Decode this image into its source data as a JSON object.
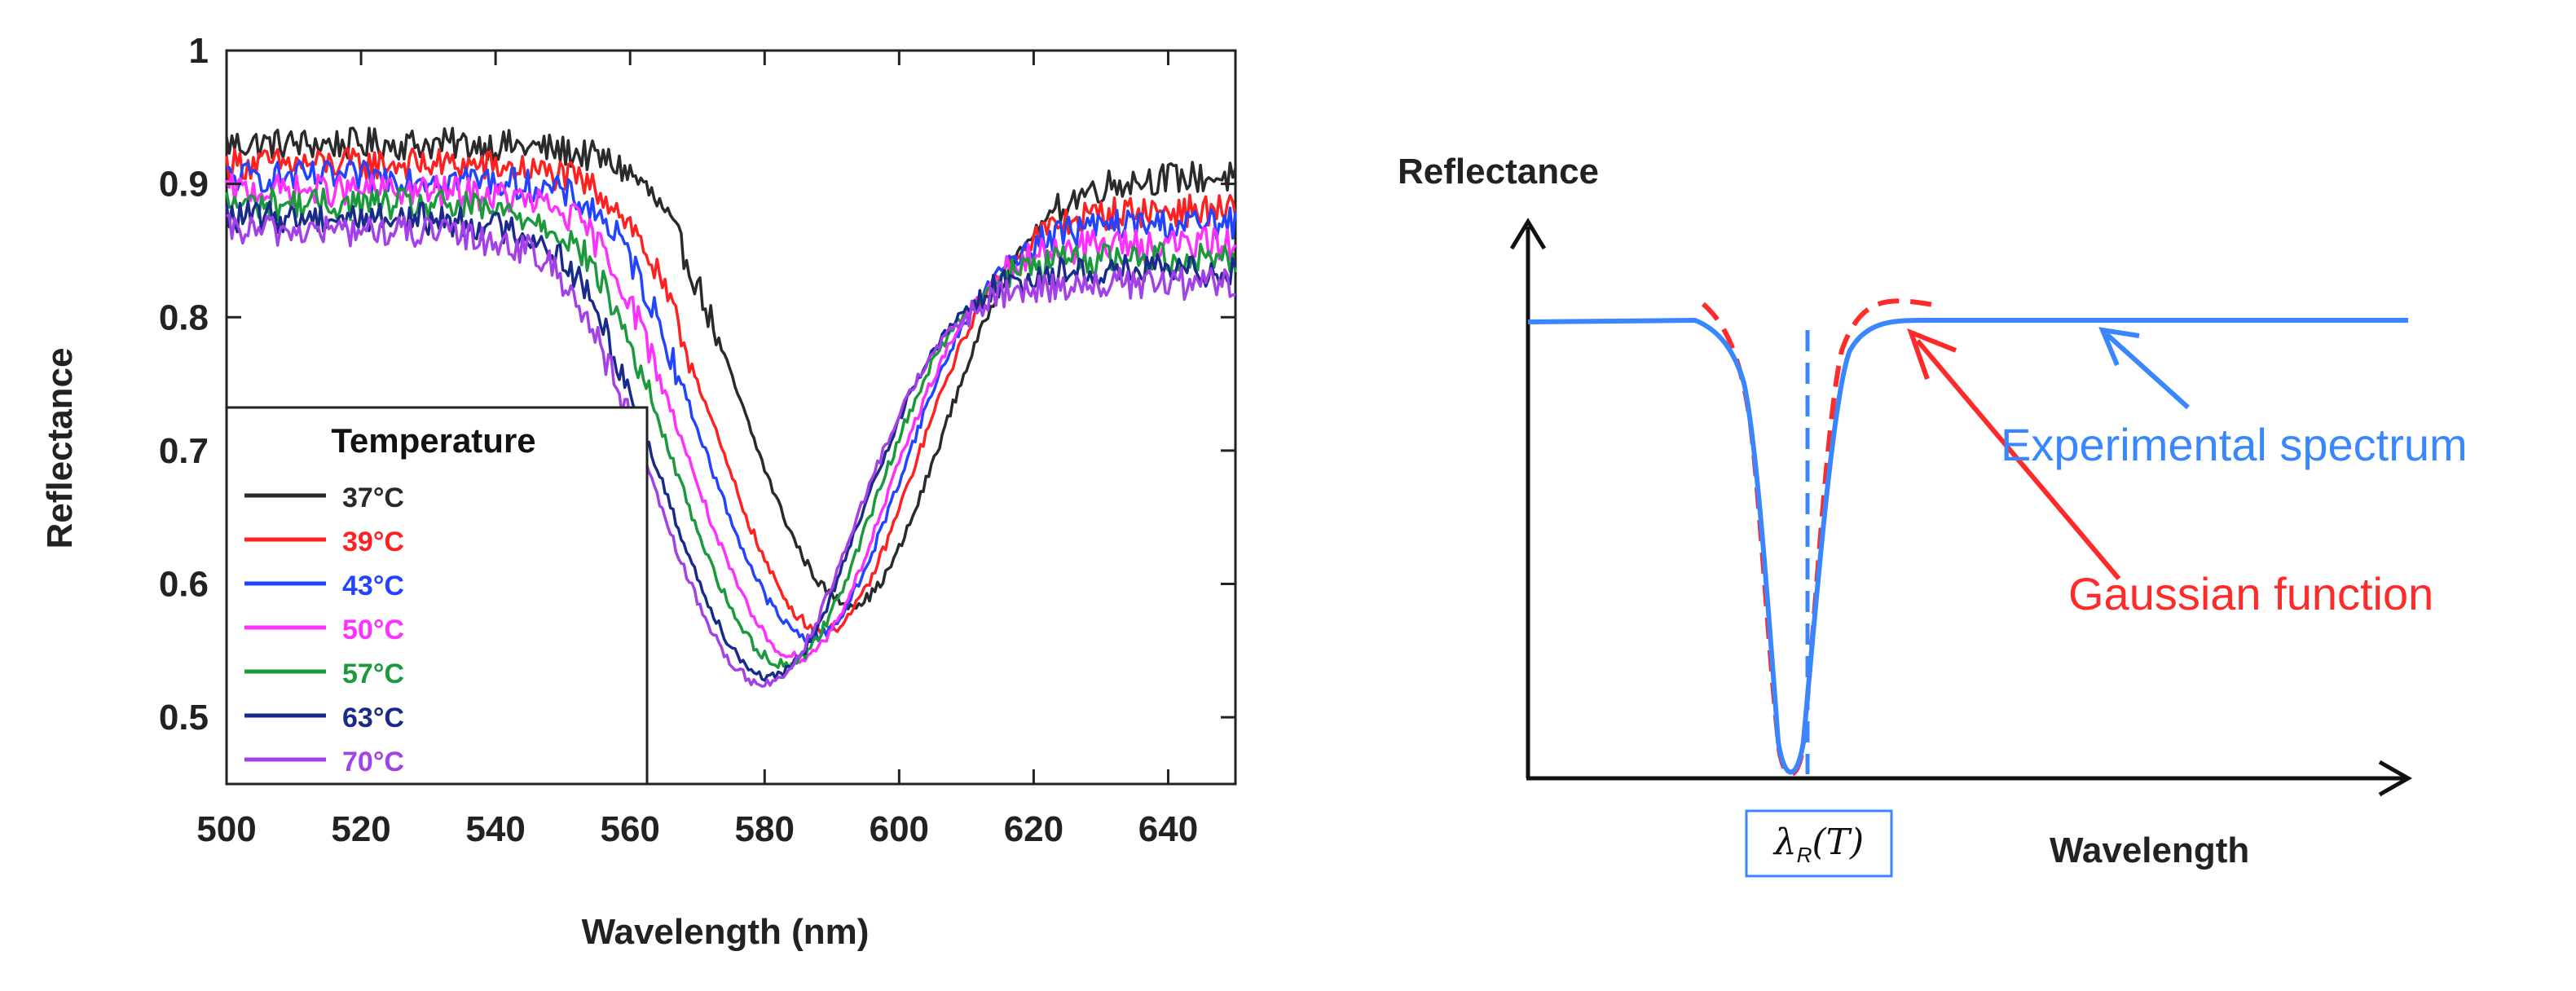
{
  "chart_data": [
    {
      "type": "line",
      "title": "",
      "xlabel": "Wavelength (nm)",
      "ylabel": "Reflectance",
      "xlim": [
        500,
        650
      ],
      "ylim": [
        0.45,
        1.0
      ],
      "x_ticks": [
        500,
        520,
        540,
        560,
        580,
        600,
        620,
        640
      ],
      "y_ticks": [
        0.5,
        0.6,
        0.7,
        0.8,
        0.9,
        1
      ],
      "y_tick_labels": [
        "0.5",
        "0.6",
        "0.7",
        "0.8",
        "0.9",
        "1"
      ],
      "grid": false,
      "legend": {
        "title": "Temperature",
        "position": "bottom-left"
      },
      "series": [
        {
          "name": "37°C",
          "color": "#2a2a2a",
          "dip_wavelength": 593,
          "dip_min": 0.585,
          "left_level": 0.93,
          "right_level": 0.905
        },
        {
          "name": "39°C",
          "color": "#ff2020",
          "dip_wavelength": 589,
          "dip_min": 0.565,
          "left_level": 0.915,
          "right_level": 0.88
        },
        {
          "name": "43°C",
          "color": "#2244ff",
          "dip_wavelength": 587,
          "dip_min": 0.56,
          "left_level": 0.905,
          "right_level": 0.87
        },
        {
          "name": "50°C",
          "color": "#ff30ff",
          "dip_wavelength": 585,
          "dip_min": 0.545,
          "left_level": 0.895,
          "right_level": 0.855
        },
        {
          "name": "57°C",
          "color": "#1b9a3c",
          "dip_wavelength": 583,
          "dip_min": 0.54,
          "left_level": 0.885,
          "right_level": 0.845
        },
        {
          "name": "63°C",
          "color": "#1a2a8a",
          "dip_wavelength": 581,
          "dip_min": 0.53,
          "left_level": 0.875,
          "right_level": 0.835
        },
        {
          "name": "70°C",
          "color": "#a440e8",
          "dip_wavelength": 580,
          "dip_min": 0.525,
          "left_level": 0.865,
          "right_level": 0.825
        }
      ]
    },
    {
      "type": "line",
      "title": "",
      "xlabel": "Wavelength",
      "ylabel": "Reflectance",
      "series": [
        {
          "name": "Experimental spectrum",
          "color": "#3a86ff",
          "style": "solid"
        },
        {
          "name": "Gaussian function",
          "color": "#ff2a2a",
          "style": "dashed"
        }
      ],
      "marker_label": "λ_R(T)",
      "marker_style": "dashed vertical line at dip minimum"
    }
  ],
  "labels": {
    "left_xlabel": "Wavelength (nm)",
    "left_ylabel": "Reflectance",
    "legend_title": "Temperature",
    "right_ylabel": "Reflectance",
    "right_xlabel": "Wavelength",
    "annot_experimental": "Experimental spectrum",
    "annot_gaussian": "Gaussian function",
    "lambda_main": "λ",
    "lambda_sub": "R",
    "lambda_arg": "(T)"
  }
}
